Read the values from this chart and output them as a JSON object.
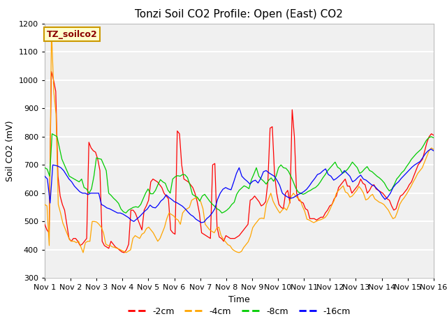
{
  "title": "Tonzi Soil CO2 Profile: Open (East) CO2",
  "xlabel": "Time",
  "ylabel": "Soil CO2 (mV)",
  "ylim": [
    300,
    1200
  ],
  "xlim": [
    0,
    15
  ],
  "xtick_labels": [
    "Nov 1",
    "Nov 2",
    "Nov 3",
    "Nov 4",
    "Nov 5",
    "Nov 6",
    "Nov 7",
    "Nov 8",
    "Nov 9",
    "Nov 10",
    "Nov 11",
    "Nov 12",
    "Nov 13",
    "Nov 14",
    "Nov 15",
    "Nov 16"
  ],
  "ytick_values": [
    300,
    400,
    500,
    600,
    700,
    800,
    900,
    1000,
    1100,
    1200
  ],
  "colors": {
    "-2cm": "#ff0000",
    "-4cm": "#ffa500",
    "-8cm": "#00cc00",
    "-16cm": "#0000ff"
  },
  "legend_label": "TZ_soilco2",
  "legend_box_facecolor": "#ffffcc",
  "legend_box_edgecolor": "#cc9900",
  "fig_facecolor": "#ffffff",
  "plot_facecolor": "#f0f0f0",
  "grid_color": "#ffffff",
  "title_fontsize": 11,
  "axis_fontsize": 9,
  "tick_fontsize": 8,
  "series_2cm": [
    490,
    470,
    460,
    1030,
    1000,
    960,
    660,
    590,
    560,
    540,
    490,
    440,
    430,
    440,
    440,
    430,
    415,
    420,
    430,
    440,
    780,
    760,
    750,
    745,
    720,
    680,
    430,
    415,
    410,
    405,
    430,
    420,
    410,
    405,
    398,
    392,
    390,
    400,
    420,
    540,
    540,
    530,
    510,
    490,
    470,
    540,
    555,
    575,
    640,
    650,
    645,
    640,
    630,
    620,
    600,
    590,
    580,
    470,
    460,
    455,
    820,
    810,
    700,
    650,
    645,
    640,
    630,
    620,
    600,
    570,
    530,
    460,
    455,
    450,
    445,
    440,
    700,
    705,
    480,
    445,
    440,
    430,
    450,
    445,
    440,
    440,
    440,
    445,
    450,
    460,
    470,
    480,
    490,
    575,
    580,
    590,
    580,
    570,
    555,
    560,
    570,
    640,
    830,
    835,
    670,
    600,
    560,
    550,
    545,
    600,
    610,
    565,
    895,
    800,
    600,
    575,
    570,
    565,
    545,
    540,
    510,
    510,
    510,
    505,
    510,
    515,
    515,
    530,
    540,
    555,
    560,
    580,
    590,
    620,
    630,
    640,
    650,
    625,
    625,
    600,
    610,
    620,
    630,
    650,
    635,
    630,
    600,
    610,
    625,
    630,
    615,
    610,
    605,
    600,
    590,
    580,
    575,
    555,
    540,
    545,
    570,
    590,
    595,
    605,
    615,
    630,
    640,
    660,
    680,
    700,
    710,
    720,
    750,
    780,
    800,
    810,
    805
  ],
  "series_4cm": [
    560,
    555,
    415,
    1180,
    960,
    880,
    560,
    530,
    495,
    475,
    455,
    435,
    430,
    430,
    425,
    430,
    410,
    390,
    425,
    430,
    430,
    500,
    500,
    498,
    490,
    480,
    460,
    420,
    415,
    415,
    410,
    408,
    405,
    402,
    398,
    394,
    390,
    395,
    400,
    440,
    450,
    445,
    440,
    455,
    460,
    475,
    480,
    470,
    460,
    445,
    430,
    440,
    460,
    480,
    510,
    530,
    525,
    520,
    510,
    505,
    490,
    530,
    540,
    545,
    550,
    575,
    580,
    585,
    580,
    570,
    545,
    490,
    480,
    470,
    465,
    460,
    475,
    480,
    450,
    438,
    428,
    418,
    414,
    402,
    396,
    392,
    390,
    394,
    408,
    418,
    428,
    448,
    478,
    490,
    500,
    510,
    512,
    510,
    560,
    580,
    600,
    572,
    556,
    542,
    530,
    540,
    548,
    540,
    558,
    588,
    600,
    590,
    582,
    576,
    554,
    536,
    508,
    505,
    500,
    496,
    500,
    504,
    506,
    510,
    514,
    524,
    540,
    558,
    574,
    600,
    610,
    618,
    626,
    604,
    600,
    586,
    590,
    600,
    610,
    624,
    614,
    600,
    576,
    580,
    590,
    596,
    580,
    574,
    568,
    565,
    560,
    550,
    540,
    524,
    510,
    514,
    534,
    560,
    574,
    584,
    596,
    610,
    624,
    640,
    654,
    670,
    680,
    690,
    710,
    730,
    750,
    760,
    755
  ],
  "series_8cm": [
    690,
    685,
    660,
    810,
    805,
    800,
    760,
    720,
    700,
    680,
    660,
    655,
    650,
    645,
    640,
    650,
    620,
    615,
    600,
    615,
    660,
    725,
    722,
    720,
    700,
    680,
    600,
    592,
    582,
    574,
    564,
    544,
    534,
    530,
    540,
    545,
    550,
    552,
    550,
    560,
    580,
    600,
    615,
    598,
    598,
    610,
    630,
    648,
    640,
    635,
    612,
    600,
    650,
    658,
    662,
    660,
    666,
    665,
    655,
    630,
    596,
    590,
    586,
    572,
    590,
    596,
    584,
    572,
    562,
    554,
    545,
    540,
    530,
    534,
    540,
    548,
    560,
    568,
    596,
    610,
    618,
    626,
    622,
    616,
    648,
    668,
    690,
    660,
    650,
    642,
    632,
    646,
    654,
    642,
    660,
    690,
    700,
    690,
    688,
    678,
    660,
    640,
    618,
    604,
    600,
    596,
    600,
    606,
    610,
    616,
    620,
    628,
    640,
    654,
    666,
    680,
    690,
    700,
    710,
    692,
    686,
    670,
    676,
    684,
    696,
    710,
    700,
    690,
    670,
    676,
    686,
    694,
    680,
    676,
    668,
    660,
    654,
    646,
    636,
    620,
    608,
    614,
    630,
    650,
    660,
    672,
    680,
    694,
    706,
    720,
    730,
    740,
    748,
    756,
    770,
    786,
    796,
    800,
    796
  ],
  "series_16cm": [
    660,
    650,
    565,
    700,
    698,
    695,
    690,
    680,
    665,
    650,
    640,
    625,
    615,
    605,
    600,
    600,
    595,
    600,
    600,
    600,
    600,
    560,
    555,
    548,
    545,
    540,
    535,
    530,
    530,
    526,
    520,
    514,
    505,
    500,
    508,
    516,
    526,
    536,
    544,
    558,
    550,
    548,
    558,
    572,
    580,
    594,
    585,
    578,
    570,
    566,
    560,
    554,
    545,
    534,
    524,
    518,
    508,
    502,
    496,
    498,
    510,
    518,
    530,
    545,
    578,
    600,
    614,
    620,
    615,
    612,
    640,
    670,
    690,
    660,
    650,
    642,
    632,
    642,
    646,
    636,
    652,
    676,
    680,
    672,
    666,
    660,
    646,
    628,
    600,
    592,
    586,
    582,
    584,
    590,
    596,
    600,
    606,
    614,
    626,
    640,
    652,
    666,
    670,
    679,
    686,
    666,
    660,
    646,
    652,
    660,
    668,
    680,
    670,
    660,
    640,
    646,
    656,
    664,
    650,
    646,
    638,
    630,
    626,
    616,
    606,
    590,
    578,
    586,
    600,
    620,
    632,
    640,
    652,
    662,
    672,
    682,
    692,
    700,
    706,
    712,
    726,
    740,
    750,
    756,
    750
  ]
}
